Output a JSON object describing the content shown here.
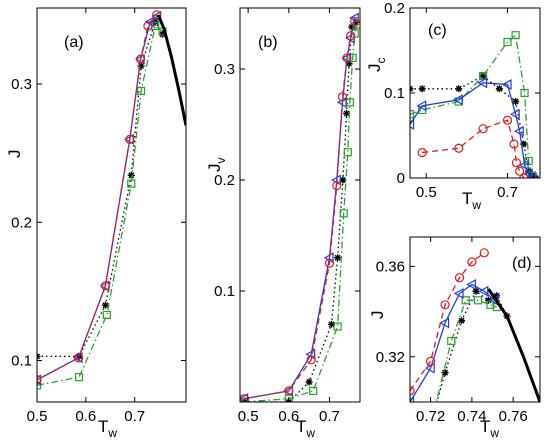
{
  "chart_data": [
    {
      "id": "a",
      "type": "line",
      "panel_label": "(a)",
      "xlabel": "T",
      "xlabel_sub": "w",
      "ylabel": "J",
      "ylabel_sub": "",
      "xlim": [
        0.5,
        0.805
      ],
      "ylim": [
        0.07,
        0.355
      ],
      "xticks": [
        0.5,
        0.6,
        0.7
      ],
      "xtick_labels": [
        "0.5",
        "0.6",
        "0.7"
      ],
      "yticks": [
        0.1,
        0.2,
        0.3
      ],
      "ytick_labels": [
        "0.1",
        "0.2",
        "0.3"
      ],
      "series": [
        {
          "marker": "star",
          "line": "dotted",
          "color": "#000000",
          "x": [
            0.5,
            0.586,
            0.64,
            0.693,
            0.713,
            0.742,
            0.757
          ],
          "y": [
            0.103,
            0.103,
            0.14,
            0.234,
            0.313,
            0.345,
            0.336
          ]
        },
        {
          "marker": "square",
          "line": "dashdot",
          "color": "#2ca02c",
          "x": [
            0.5,
            0.586,
            0.643,
            0.693,
            0.713,
            0.742,
            0.757
          ],
          "y": [
            0.082,
            0.088,
            0.133,
            0.228,
            0.295,
            0.342,
            0.338
          ]
        },
        {
          "marker": "triangle-left",
          "line": "solid",
          "color": "#1f3fd8",
          "x": [
            0.5,
            0.585,
            0.64,
            0.69,
            0.712,
            0.732,
            0.746
          ],
          "y": [
            0.086,
            0.102,
            0.154,
            0.26,
            0.318,
            0.345,
            0.349
          ]
        },
        {
          "marker": "circle",
          "line": "dashed",
          "color": "#e31a1c",
          "x": [
            0.5,
            0.585,
            0.64,
            0.69,
            0.712,
            0.727,
            0.745
          ],
          "y": [
            0.086,
            0.102,
            0.154,
            0.26,
            0.318,
            0.342,
            0.35
          ]
        },
        {
          "marker": "none",
          "line": "solid-thick",
          "color": "#000000",
          "x": [
            0.748,
            0.76,
            0.775,
            0.79,
            0.805
          ],
          "y": [
            0.35,
            0.34,
            0.32,
            0.296,
            0.27
          ]
        }
      ]
    },
    {
      "id": "b",
      "type": "line",
      "panel_label": "(b)",
      "xlabel": "T",
      "xlabel_sub": "w",
      "ylabel": "J",
      "ylabel_sub": "v",
      "xlim": [
        0.48,
        0.775
      ],
      "ylim": [
        0,
        0.355
      ],
      "xticks": [
        0.5,
        0.6,
        0.7
      ],
      "xtick_labels": [
        "0.5",
        "0.6",
        "0.7"
      ],
      "yticks": [
        0.1,
        0.2,
        0.3
      ],
      "ytick_labels": [
        "0.1",
        "0.2",
        "0.3"
      ],
      "series": [
        {
          "marker": "star",
          "line": "dotted",
          "color": "#000000",
          "x": [
            0.49,
            0.6,
            0.65,
            0.705,
            0.72,
            0.733,
            0.742,
            0.748,
            0.755,
            0.765
          ],
          "y": [
            0.0,
            0.0,
            0.018,
            0.07,
            0.13,
            0.2,
            0.26,
            0.305,
            0.338,
            0.342
          ]
        },
        {
          "marker": "square",
          "line": "dashdot",
          "color": "#2ca02c",
          "x": [
            0.49,
            0.6,
            0.66,
            0.72,
            0.735,
            0.745,
            0.75,
            0.757,
            0.762,
            0.768
          ],
          "y": [
            0.0,
            0.003,
            0.01,
            0.068,
            0.17,
            0.225,
            0.27,
            0.31,
            0.332,
            0.34
          ]
        },
        {
          "marker": "triangle-left",
          "line": "solid",
          "color": "#1f3fd8",
          "x": [
            0.49,
            0.6,
            0.655,
            0.7,
            0.718,
            0.732,
            0.743,
            0.752,
            0.762
          ],
          "y": [
            0.003,
            0.01,
            0.043,
            0.13,
            0.2,
            0.27,
            0.31,
            0.328,
            0.346
          ]
        },
        {
          "marker": "circle",
          "line": "dashed",
          "color": "#e31a1c",
          "x": [
            0.49,
            0.6,
            0.655,
            0.7,
            0.718,
            0.732,
            0.743,
            0.752,
            0.762
          ],
          "y": [
            0.003,
            0.01,
            0.038,
            0.125,
            0.195,
            0.275,
            0.31,
            0.33,
            0.343
          ]
        }
      ]
    },
    {
      "id": "c",
      "type": "line",
      "panel_label": "(c)",
      "xlabel": "T",
      "xlabel_sub": "w",
      "ylabel": "J",
      "ylabel_sub": "c",
      "xlim": [
        0.46,
        0.78
      ],
      "ylim": [
        0,
        0.2
      ],
      "xticks": [
        0.5,
        0.7
      ],
      "xtick_labels": [
        "0.5",
        "0.7"
      ],
      "yticks": [
        0,
        0.1,
        0.2
      ],
      "ytick_labels": [
        "0",
        "0.1",
        "0.2"
      ],
      "series": [
        {
          "marker": "star",
          "line": "dotted",
          "color": "#000000",
          "x": [
            0.46,
            0.49,
            0.58,
            0.64,
            0.68,
            0.72,
            0.74,
            0.752,
            0.76,
            0.77
          ],
          "y": [
            0.105,
            0.105,
            0.105,
            0.12,
            0.105,
            0.09,
            0.04,
            0.008,
            0.003,
            0.0
          ]
        },
        {
          "marker": "square",
          "line": "dashdot",
          "color": "#2ca02c",
          "x": [
            0.46,
            0.49,
            0.58,
            0.64,
            0.7,
            0.72,
            0.742,
            0.752,
            0.76
          ],
          "y": [
            0.075,
            0.08,
            0.09,
            0.12,
            0.16,
            0.168,
            0.1,
            0.02,
            0.003
          ]
        },
        {
          "marker": "triangle-left",
          "line": "solid",
          "color": "#1f3fd8",
          "x": [
            0.46,
            0.49,
            0.58,
            0.64,
            0.7,
            0.72,
            0.73,
            0.742,
            0.752,
            0.762
          ],
          "y": [
            0.063,
            0.085,
            0.092,
            0.112,
            0.11,
            0.075,
            0.055,
            0.015,
            0.005,
            0.0
          ]
        },
        {
          "marker": "circle",
          "line": "dashed",
          "color": "#e31a1c",
          "x": [
            0.49,
            0.58,
            0.64,
            0.7,
            0.716,
            0.722,
            0.73,
            0.74
          ],
          "y": [
            0.03,
            0.035,
            0.058,
            0.068,
            0.04,
            0.018,
            0.008,
            0.0
          ]
        }
      ]
    },
    {
      "id": "d",
      "type": "line",
      "panel_label": "(d)",
      "xlabel": "T",
      "xlabel_sub": "w",
      "ylabel": "J",
      "ylabel_sub": "",
      "xlim": [
        0.71,
        0.773
      ],
      "ylim": [
        0.3,
        0.373
      ],
      "xticks": [
        0.72,
        0.74,
        0.76
      ],
      "xtick_labels": [
        "0.72",
        "0.74",
        "0.76"
      ],
      "yticks": [
        0.32,
        0.36
      ],
      "ytick_labels": [
        "0.32",
        "0.36"
      ],
      "series": [
        {
          "marker": "star",
          "line": "dotted",
          "color": "#000000",
          "x": [
            0.72,
            0.727,
            0.735,
            0.742,
            0.748,
            0.752,
            0.757
          ],
          "y": [
            0.29,
            0.313,
            0.336,
            0.349,
            0.345,
            0.347,
            0.338
          ]
        },
        {
          "marker": "square",
          "line": "dashdot",
          "color": "#2ca02c",
          "x": [
            0.72,
            0.73,
            0.737,
            0.743,
            0.749,
            0.752
          ],
          "y": [
            0.29,
            0.327,
            0.345,
            0.345,
            0.343,
            0.342
          ]
        },
        {
          "marker": "triangle-left",
          "line": "solid",
          "color": "#1f3fd8",
          "x": [
            0.71,
            0.72,
            0.727,
            0.734,
            0.74,
            0.746,
            0.751
          ],
          "y": [
            0.3,
            0.315,
            0.335,
            0.348,
            0.352,
            0.349,
            0.345
          ]
        },
        {
          "marker": "circle",
          "line": "dashed",
          "color": "#e31a1c",
          "x": [
            0.71,
            0.72,
            0.727,
            0.734,
            0.74,
            0.746
          ],
          "y": [
            0.305,
            0.318,
            0.343,
            0.355,
            0.362,
            0.366
          ]
        },
        {
          "marker": "none",
          "line": "solid-thick",
          "color": "#000000",
          "x": [
            0.748,
            0.757,
            0.765,
            0.773
          ],
          "y": [
            0.35,
            0.338,
            0.32,
            0.3
          ]
        }
      ]
    }
  ]
}
